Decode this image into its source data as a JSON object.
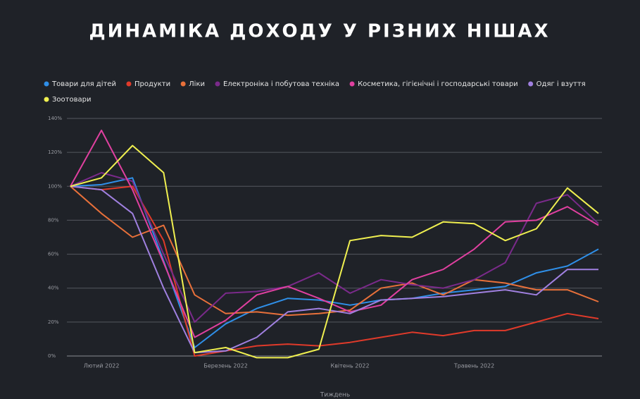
{
  "chart_data": {
    "type": "line",
    "title": "ДИНАМІКА ДОХОДУ У РІЗНИХ НІШАХ",
    "x_label": "Тиждень",
    "categories": [
      null,
      "Лютий 2022",
      null,
      null,
      null,
      "Березень 2022",
      null,
      null,
      null,
      "Квітень 2022",
      null,
      null,
      null,
      "Травень 2022",
      null,
      null,
      null,
      null
    ],
    "ylim": [
      -5,
      145
    ],
    "yticks": [
      {
        "value": 0,
        "label": "0%"
      },
      {
        "value": 20,
        "label": "20%"
      },
      {
        "value": 40,
        "label": "40%"
      },
      {
        "value": 60,
        "label": "60%"
      },
      {
        "value": 80,
        "label": "80%"
      },
      {
        "value": 100,
        "label": "100%"
      },
      {
        "value": 120,
        "label": "120%"
      },
      {
        "value": 140,
        "label": "140%"
      }
    ],
    "grid": true,
    "series": [
      {
        "name": "Товари для дітей",
        "color": "#2f8fe8",
        "values": [
          100,
          101,
          105,
          56,
          5,
          19,
          28,
          34,
          33,
          30,
          33,
          34,
          37,
          39,
          41,
          49,
          53,
          63
        ]
      },
      {
        "name": "Продукти",
        "color": "#e03a2a",
        "values": [
          100,
          98,
          100,
          68,
          0,
          3,
          6,
          7,
          6,
          8,
          11,
          14,
          12,
          15,
          15,
          20,
          25,
          22
        ]
      },
      {
        "name": "Ліки",
        "color": "#e8703a",
        "values": [
          100,
          84,
          70,
          77,
          36,
          25,
          26,
          24,
          25,
          27,
          40,
          43,
          36,
          45,
          43,
          39,
          39,
          32
        ]
      },
      {
        "name": "Електроніка і побутова техніка",
        "color": "#7a2a8a",
        "values": [
          100,
          108,
          103,
          60,
          20,
          37,
          38,
          41,
          49,
          37,
          45,
          42,
          40,
          45,
          55,
          90,
          95,
          78
        ]
      },
      {
        "name": "Косметика, гігієнічні і господарські товари",
        "color": "#e040a0",
        "values": [
          100,
          133,
          98,
          55,
          11,
          21,
          36,
          41,
          34,
          26,
          30,
          45,
          51,
          63,
          79,
          80,
          88,
          77
        ]
      },
      {
        "name": "Одяг і взуття",
        "color": "#a080e0",
        "values": [
          100,
          98,
          84,
          40,
          2,
          3,
          11,
          26,
          28,
          25,
          33,
          34,
          35,
          37,
          39,
          36,
          51,
          51
        ]
      },
      {
        "name": "Зоотовари",
        "color": "#f0f050",
        "values": [
          100,
          105,
          124,
          108,
          2,
          5,
          -1,
          -1,
          4,
          68,
          71,
          70,
          79,
          78,
          68,
          75,
          99,
          84
        ]
      }
    ]
  }
}
